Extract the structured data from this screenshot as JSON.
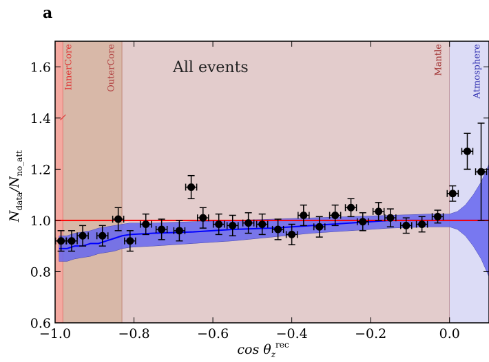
{
  "panel_label": "a",
  "chart_data": {
    "type": "scatter",
    "title": "",
    "annotation": "All events",
    "xlabel": "cos θ",
    "xlabel_sup": "rec",
    "xlabel_sub": "z",
    "ylabel": "N",
    "ylabel_sub1": "data",
    "ylabel_mid": "/N",
    "ylabel_sub2": "no_att",
    "xlim": [
      -1.0,
      0.1
    ],
    "ylim": [
      0.6,
      1.7
    ],
    "xticks": [
      -1.0,
      -0.8,
      -0.6,
      -0.4,
      -0.2,
      0.0
    ],
    "xtick_labels": [
      "−1.0",
      "−0.8",
      "−0.6",
      "−0.4",
      "−0.2",
      "0.0"
    ],
    "yticks": [
      0.6,
      0.8,
      1.0,
      1.2,
      1.4,
      1.6
    ],
    "ytick_labels": [
      "0.6",
      "0.8",
      "1.0",
      "1.2",
      "1.4",
      "1.6"
    ],
    "regions": [
      {
        "name": "InnerCore",
        "x0": -1.0,
        "x1": -0.98,
        "fill": "#f4a9a0",
        "line": "#e05050",
        "label_color": "#e03030"
      },
      {
        "name": "OuterCore",
        "x0": -0.98,
        "x1": -0.83,
        "fill": "#d8b8a8",
        "line": "#b06050",
        "label_color": "#b04040"
      },
      {
        "name": "Mantle",
        "x0": -0.83,
        "x1": 0.0,
        "fill": "#e3cccc",
        "line": "#b07070",
        "label_color": "#a03030"
      },
      {
        "name": "Atmosphere",
        "x0": 0.0,
        "x1": 0.1,
        "fill": "#dcdcf6",
        "line": "#9090c8",
        "label_color": "#3030b0"
      }
    ],
    "reference_line": {
      "y": 1.0,
      "color": "#ff0000"
    },
    "model_line_color": "#0000ff",
    "band_color": "#6666ee",
    "model": {
      "x": [
        -0.99,
        -0.97,
        -0.95,
        -0.93,
        -0.91,
        -0.89,
        -0.87,
        -0.85,
        -0.83,
        -0.81,
        -0.75,
        -0.65,
        -0.55,
        -0.45,
        -0.35,
        -0.25,
        -0.15,
        -0.05,
        0.0,
        0.02,
        0.04,
        0.06,
        0.08,
        0.1
      ],
      "center": [
        0.89,
        0.89,
        0.9,
        0.9,
        0.91,
        0.91,
        0.92,
        0.93,
        0.94,
        0.945,
        0.95,
        0.955,
        0.965,
        0.97,
        0.98,
        0.99,
        1.0,
        1.0,
        1.0,
        1.0,
        1.0,
        1.0,
        1.0,
        1.0
      ],
      "upper": [
        0.94,
        0.94,
        0.95,
        0.955,
        0.96,
        0.97,
        0.975,
        0.98,
        0.985,
        0.99,
        0.99,
        0.995,
        1.0,
        1.005,
        1.01,
        1.015,
        1.02,
        1.025,
        1.025,
        1.035,
        1.06,
        1.1,
        1.15,
        1.22
      ],
      "lower": [
        0.84,
        0.84,
        0.85,
        0.855,
        0.86,
        0.87,
        0.875,
        0.88,
        0.89,
        0.895,
        0.9,
        0.91,
        0.92,
        0.935,
        0.95,
        0.96,
        0.97,
        0.975,
        0.975,
        0.965,
        0.94,
        0.9,
        0.85,
        0.78
      ]
    },
    "series": [
      {
        "points": [
          {
            "x": -0.985,
            "y": 0.92,
            "xerr": 0.014,
            "yerr": 0.04
          },
          {
            "x": -0.958,
            "y": 0.92,
            "xerr": 0.014,
            "yerr": 0.04
          },
          {
            "x": -0.93,
            "y": 0.94,
            "xerr": 0.014,
            "yerr": 0.04
          },
          {
            "x": -0.88,
            "y": 0.94,
            "xerr": 0.014,
            "yerr": 0.04
          },
          {
            "x": -0.84,
            "y": 1.005,
            "xerr": 0.014,
            "yerr": 0.045
          },
          {
            "x": -0.81,
            "y": 0.92,
            "xerr": 0.014,
            "yerr": 0.04
          },
          {
            "x": -0.77,
            "y": 0.985,
            "xerr": 0.014,
            "yerr": 0.04
          },
          {
            "x": -0.73,
            "y": 0.965,
            "xerr": 0.014,
            "yerr": 0.04
          },
          {
            "x": -0.685,
            "y": 0.96,
            "xerr": 0.014,
            "yerr": 0.04
          },
          {
            "x": -0.655,
            "y": 1.13,
            "xerr": 0.014,
            "yerr": 0.045
          },
          {
            "x": -0.625,
            "y": 1.01,
            "xerr": 0.014,
            "yerr": 0.04
          },
          {
            "x": -0.585,
            "y": 0.985,
            "xerr": 0.014,
            "yerr": 0.04
          },
          {
            "x": -0.55,
            "y": 0.98,
            "xerr": 0.014,
            "yerr": 0.04
          },
          {
            "x": -0.51,
            "y": 0.99,
            "xerr": 0.014,
            "yerr": 0.04
          },
          {
            "x": -0.475,
            "y": 0.985,
            "xerr": 0.014,
            "yerr": 0.04
          },
          {
            "x": -0.435,
            "y": 0.965,
            "xerr": 0.014,
            "yerr": 0.04
          },
          {
            "x": -0.4,
            "y": 0.945,
            "xerr": 0.014,
            "yerr": 0.04
          },
          {
            "x": -0.37,
            "y": 1.02,
            "xerr": 0.014,
            "yerr": 0.04
          },
          {
            "x": -0.33,
            "y": 0.975,
            "xerr": 0.014,
            "yerr": 0.04
          },
          {
            "x": -0.29,
            "y": 1.02,
            "xerr": 0.014,
            "yerr": 0.04
          },
          {
            "x": -0.25,
            "y": 1.05,
            "xerr": 0.014,
            "yerr": 0.035
          },
          {
            "x": -0.22,
            "y": 0.995,
            "xerr": 0.014,
            "yerr": 0.035
          },
          {
            "x": -0.18,
            "y": 1.035,
            "xerr": 0.014,
            "yerr": 0.035
          },
          {
            "x": -0.15,
            "y": 1.01,
            "xerr": 0.014,
            "yerr": 0.035
          },
          {
            "x": -0.11,
            "y": 0.98,
            "xerr": 0.014,
            "yerr": 0.03
          },
          {
            "x": -0.07,
            "y": 0.985,
            "xerr": 0.014,
            "yerr": 0.03
          },
          {
            "x": -0.03,
            "y": 1.015,
            "xerr": 0.014,
            "yerr": 0.025
          },
          {
            "x": 0.008,
            "y": 1.105,
            "xerr": 0.014,
            "yerr": 0.03
          },
          {
            "x": 0.045,
            "y": 1.27,
            "xerr": 0.014,
            "yerr": 0.07
          },
          {
            "x": 0.08,
            "y": 1.19,
            "xerr": 0.014,
            "yerr": 0.19
          }
        ]
      }
    ]
  }
}
